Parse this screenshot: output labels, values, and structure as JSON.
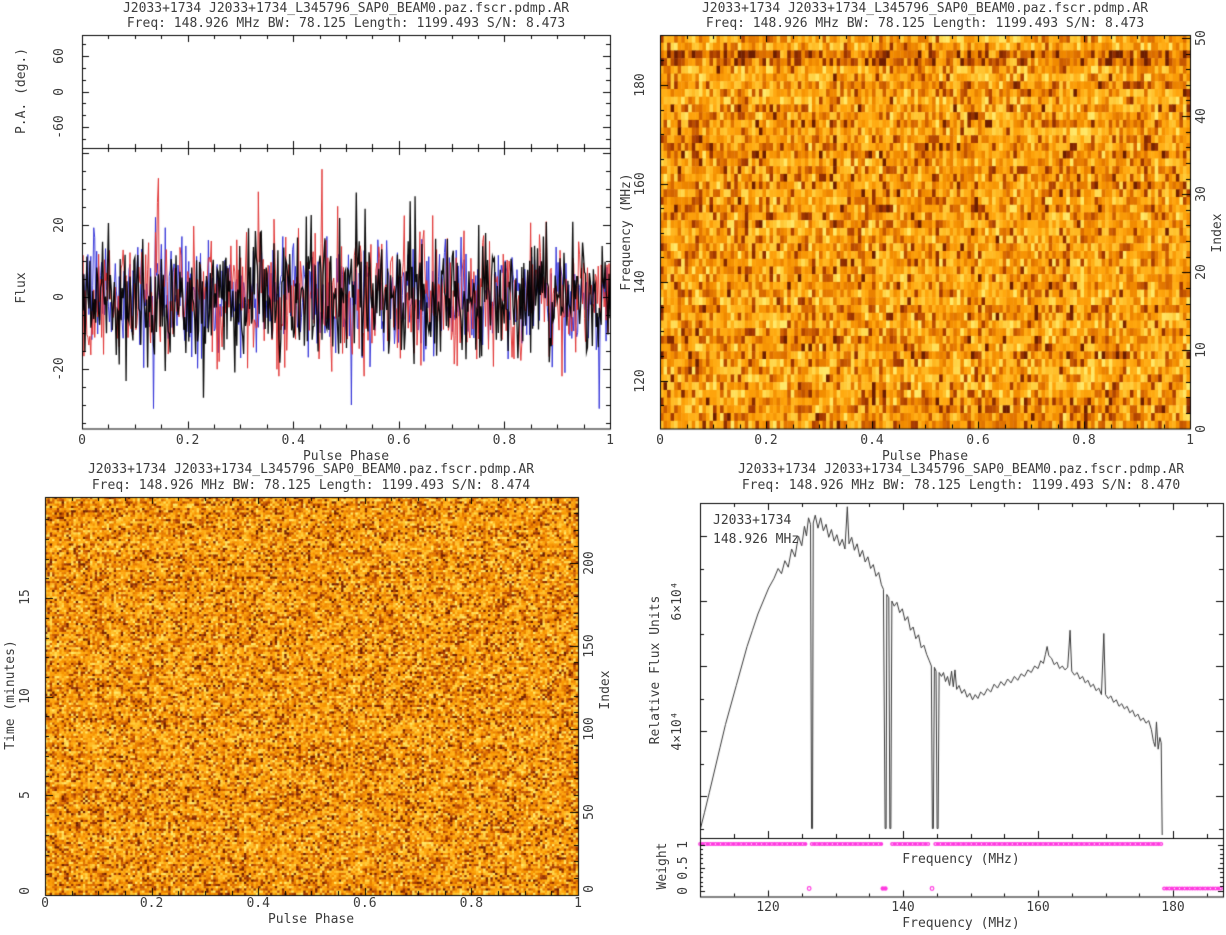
{
  "colors": {
    "background": "#ffffff",
    "axis": "#000000",
    "text": "#3c3c3c",
    "trace_black": "#000000",
    "trace_red": "#e03434",
    "trace_blue": "#3434d8",
    "magenta": "#ff3be0",
    "curve": "#383838",
    "heat_palette": [
      "#6E1E00",
      "#A63A00",
      "#D96A00",
      "#F28C00",
      "#FFA60D",
      "#FFBE28",
      "#FFD447",
      "#FFE869"
    ]
  },
  "panels": {
    "top_left": {
      "title": "J2033+1734 J2033+1734_L345796_SAP0_BEAM0.paz.fscr.pdmp.AR",
      "subtitle": "Freq: 148.926 MHz BW: 78.125 Length: 1199.493 S/N: 8.473",
      "pa_ylabel": "P.A. (deg.)",
      "pa_yticks": [
        "60",
        "0",
        "-60"
      ],
      "flux_ylabel": "Flux",
      "flux_yticks": [
        "20",
        "0",
        "-20"
      ],
      "xlabel": "Pulse Phase",
      "xticks": [
        "0",
        "0.2",
        "0.4",
        "0.6",
        "0.8",
        "1"
      ]
    },
    "top_right": {
      "title": "J2033+1734 J2033+1734_L345796_SAP0_BEAM0.paz.fscr.pdmp.AR",
      "subtitle": "Freq: 148.926 MHz BW: 78.125 Length: 1199.493 S/N: 8.473",
      "ylabel_left": "Frequency (MHz)",
      "yticks_left": [
        "180",
        "160",
        "140",
        "120"
      ],
      "ylabel_right": "Index",
      "yticks_right": [
        "50",
        "40",
        "30",
        "20",
        "10",
        "0"
      ],
      "xlabel": "Pulse Phase",
      "xticks": [
        "0",
        "0.2",
        "0.4",
        "0.6",
        "0.8",
        "1"
      ]
    },
    "bottom_left": {
      "title": "J2033+1734 J2033+1734_L345796_SAP0_BEAM0.paz.fscr.pdmp.AR",
      "subtitle": "Freq: 148.926 MHz BW: 78.125 Length: 1199.493 S/N: 8.474",
      "ylabel_left": "Time (minutes)",
      "yticks_left": [
        "15",
        "10",
        "5",
        "0"
      ],
      "ylabel_right": "Index",
      "yticks_right": [
        "200",
        "150",
        "100",
        "50",
        "0"
      ],
      "xlabel": "Pulse Phase",
      "xticks": [
        "0",
        "0.2",
        "0.4",
        "0.6",
        "0.8",
        "1"
      ]
    },
    "bottom_right": {
      "title": "J2033+1734 J2033+1734_L345796_SAP0_BEAM0.paz.fscr.pdmp.AR",
      "subtitle": "Freq: 148.926 MHz BW: 78.125 Length: 1199.493 S/N: 8.470",
      "ylabel": "Relative Flux Units",
      "yticks": [
        "6×10⁴",
        "4×10⁴"
      ],
      "annotation_line1": "J2033+1734",
      "annotation_line2": "148.926 MHz",
      "weight_ylabel": "Weight",
      "weight_yticks": [
        "1",
        "0.5",
        "0"
      ],
      "xlabel_inner": "Frequency (MHz)",
      "xlabel": "Frequency (MHz)",
      "xticks": [
        "120",
        "140",
        "160",
        "180"
      ]
    }
  },
  "chart_data": [
    {
      "id": "pa-vs-phase",
      "type": "scatter",
      "panel": "top_left",
      "ylabel": "P.A. (deg.)",
      "ylim": [
        -95,
        95
      ],
      "yticks": [
        60,
        0,
        -60
      ],
      "xlim": [
        0,
        1
      ],
      "points": [],
      "note": "position-angle panel is empty (no significant polarization detected)"
    },
    {
      "id": "profile-flux-vs-phase",
      "type": "line",
      "panel": "top_left",
      "xlabel": "Pulse Phase",
      "ylabel": "Flux",
      "xlim": [
        0,
        1
      ],
      "ylim": [
        -36.5,
        41.5
      ],
      "yticks": [
        20,
        0,
        -20
      ],
      "series": [
        {
          "name": "total-intensity",
          "color": "black",
          "style": "gaussian-noise",
          "mean": 0,
          "std": 8.8,
          "extremes": [
            [
              0.52,
              29
            ],
            [
              0.63,
              28
            ],
            [
              0.23,
              -28
            ]
          ]
        },
        {
          "name": "red-pol-trace",
          "color": "red",
          "style": "gaussian-noise",
          "mean": 0,
          "std": 8.8,
          "extremes": [
            [
              0.455,
              35.5
            ],
            [
              0.145,
              33
            ]
          ]
        },
        {
          "name": "blue-pol-trace",
          "color": "blue",
          "style": "gaussian-noise",
          "mean": 0,
          "std": 8.2,
          "extremes": [
            [
              0.135,
              -31
            ],
            [
              0.51,
              -30
            ]
          ]
        }
      ],
      "note": "noise-dominated profile, no visible pulse"
    },
    {
      "id": "phase-vs-frequency",
      "type": "heatmap",
      "panel": "top_right",
      "xlabel": "Pulse Phase",
      "ylabel": "Frequency (MHz)",
      "ylabel_right": "Index",
      "xlim": [
        0,
        1
      ],
      "ylim": [
        110,
        190
      ],
      "index_lim": [
        0,
        51
      ],
      "style": "random orange-yellow noise, 51 subband rows with horizontal banding; darker band near 184 MHz"
    },
    {
      "id": "phase-vs-time",
      "type": "heatmap",
      "panel": "bottom_left",
      "xlabel": "Pulse Phase",
      "ylabel": "Time (minutes)",
      "ylabel_right": "Index",
      "xlim": [
        0,
        1
      ],
      "ylim": [
        0,
        20
      ],
      "index_lim": [
        0,
        240
      ],
      "style": "fine-grained random orange-yellow noise with dark speckles"
    },
    {
      "id": "bandpass",
      "type": "line",
      "panel": "bottom_right",
      "xlabel": "Frequency (MHz)",
      "ylabel": "Relative Flux Units",
      "xlim": [
        109.9,
        187.5
      ],
      "ylim_1e4": [
        2.35,
        7.51
      ],
      "yticks_1e4": [
        4,
        6
      ],
      "points_mhz_flux1e4": [
        [
          110.0,
          2.5
        ],
        [
          110.6,
          2.75
        ],
        [
          111.3,
          3.05
        ],
        [
          112.1,
          3.4
        ],
        [
          112.9,
          3.75
        ],
        [
          113.7,
          4.1
        ],
        [
          114.5,
          4.4
        ],
        [
          115.3,
          4.7
        ],
        [
          116.1,
          5.0
        ],
        [
          116.9,
          5.3
        ],
        [
          117.7,
          5.55
        ],
        [
          118.5,
          5.8
        ],
        [
          119.3,
          6.0
        ],
        [
          120.1,
          6.2
        ],
        [
          120.9,
          6.35
        ],
        [
          121.5,
          6.5
        ],
        [
          122.0,
          6.42
        ],
        [
          122.5,
          6.62
        ],
        [
          123.0,
          6.52
        ],
        [
          123.5,
          6.8
        ],
        [
          124.0,
          6.68
        ],
        [
          124.5,
          7.0
        ],
        [
          125.0,
          6.85
        ],
        [
          125.4,
          7.15
        ],
        [
          125.7,
          7.0
        ],
        [
          126.0,
          7.28
        ],
        [
          126.3,
          7.18
        ],
        [
          126.45,
          2.5
        ],
        [
          126.6,
          2.5
        ],
        [
          126.7,
          7.2
        ],
        [
          127.0,
          7.32
        ],
        [
          127.4,
          7.12
        ],
        [
          127.8,
          7.28
        ],
        [
          128.2,
          7.08
        ],
        [
          128.6,
          7.18
        ],
        [
          129.0,
          6.98
        ],
        [
          129.4,
          7.1
        ],
        [
          129.8,
          6.92
        ],
        [
          130.2,
          7.02
        ],
        [
          130.6,
          6.85
        ],
        [
          131.0,
          6.95
        ],
        [
          131.4,
          6.8
        ],
        [
          131.75,
          7.45
        ],
        [
          132.0,
          6.88
        ],
        [
          132.4,
          6.98
        ],
        [
          132.8,
          6.78
        ],
        [
          133.2,
          6.88
        ],
        [
          133.6,
          6.68
        ],
        [
          134.0,
          6.78
        ],
        [
          134.4,
          6.6
        ],
        [
          134.8,
          6.68
        ],
        [
          135.2,
          6.5
        ],
        [
          135.6,
          6.56
        ],
        [
          136.0,
          6.38
        ],
        [
          136.4,
          6.44
        ],
        [
          136.8,
          6.25
        ],
        [
          137.1,
          6.18
        ],
        [
          137.35,
          2.5
        ],
        [
          137.5,
          2.5
        ],
        [
          137.6,
          6.1
        ],
        [
          137.9,
          6.05
        ],
        [
          138.05,
          2.5
        ],
        [
          138.2,
          2.5
        ],
        [
          138.35,
          6.0
        ],
        [
          138.7,
          5.92
        ],
        [
          139.1,
          5.98
        ],
        [
          139.5,
          5.82
        ],
        [
          139.9,
          5.88
        ],
        [
          140.3,
          5.7
        ],
        [
          140.7,
          5.76
        ],
        [
          141.1,
          5.55
        ],
        [
          141.5,
          5.6
        ],
        [
          141.9,
          5.42
        ],
        [
          142.3,
          5.48
        ],
        [
          142.7,
          5.28
        ],
        [
          143.1,
          5.32
        ],
        [
          143.5,
          5.18
        ],
        [
          143.9,
          5.08
        ],
        [
          144.2,
          5.0
        ],
        [
          144.35,
          2.5
        ],
        [
          144.5,
          2.5
        ],
        [
          144.65,
          4.98
        ],
        [
          144.9,
          4.92
        ],
        [
          145.05,
          2.5
        ],
        [
          145.2,
          2.5
        ],
        [
          145.35,
          4.9
        ],
        [
          145.7,
          4.84
        ],
        [
          146.0,
          4.9
        ],
        [
          146.3,
          4.76
        ],
        [
          146.6,
          4.84
        ],
        [
          146.9,
          4.7
        ],
        [
          147.2,
          4.92
        ],
        [
          147.45,
          4.68
        ],
        [
          147.7,
          4.94
        ],
        [
          147.95,
          4.64
        ],
        [
          148.3,
          4.7
        ],
        [
          148.7,
          4.58
        ],
        [
          149.1,
          4.64
        ],
        [
          149.5,
          4.52
        ],
        [
          149.9,
          4.58
        ],
        [
          150.3,
          4.48
        ],
        [
          150.7,
          4.56
        ],
        [
          151.1,
          4.5
        ],
        [
          151.5,
          4.6
        ],
        [
          152.0,
          4.55
        ],
        [
          152.5,
          4.65
        ],
        [
          153.0,
          4.6
        ],
        [
          153.5,
          4.72
        ],
        [
          154.0,
          4.66
        ],
        [
          154.5,
          4.76
        ],
        [
          155.0,
          4.7
        ],
        [
          155.5,
          4.8
        ],
        [
          156.0,
          4.74
        ],
        [
          156.5,
          4.84
        ],
        [
          157.0,
          4.78
        ],
        [
          157.5,
          4.88
        ],
        [
          158.0,
          4.84
        ],
        [
          158.5,
          4.94
        ],
        [
          159.0,
          4.9
        ],
        [
          159.5,
          5.0
        ],
        [
          160.0,
          4.96
        ],
        [
          160.4,
          5.08
        ],
        [
          160.8,
          5.04
        ],
        [
          161.1,
          5.18
        ],
        [
          161.35,
          5.3
        ],
        [
          161.6,
          5.16
        ],
        [
          162.0,
          5.12
        ],
        [
          162.4,
          5.02
        ],
        [
          162.8,
          5.06
        ],
        [
          163.2,
          4.96
        ],
        [
          163.6,
          5.0
        ],
        [
          164.0,
          4.94
        ],
        [
          164.4,
          4.98
        ],
        [
          164.75,
          5.55
        ],
        [
          165.0,
          4.92
        ],
        [
          165.4,
          4.86
        ],
        [
          165.8,
          4.9
        ],
        [
          166.2,
          4.8
        ],
        [
          166.6,
          4.84
        ],
        [
          167.0,
          4.74
        ],
        [
          167.4,
          4.78
        ],
        [
          167.8,
          4.68
        ],
        [
          168.2,
          4.72
        ],
        [
          168.6,
          4.62
        ],
        [
          169.0,
          4.66
        ],
        [
          169.4,
          4.56
        ],
        [
          169.75,
          5.5
        ],
        [
          170.0,
          4.56
        ],
        [
          170.4,
          4.5
        ],
        [
          170.8,
          4.54
        ],
        [
          171.2,
          4.44
        ],
        [
          171.6,
          4.48
        ],
        [
          172.0,
          4.38
        ],
        [
          172.4,
          4.42
        ],
        [
          172.8,
          4.34
        ],
        [
          173.2,
          4.38
        ],
        [
          173.6,
          4.28
        ],
        [
          174.0,
          4.32
        ],
        [
          174.4,
          4.22
        ],
        [
          174.8,
          4.26
        ],
        [
          175.2,
          4.16
        ],
        [
          175.6,
          4.2
        ],
        [
          176.0,
          4.12
        ],
        [
          176.4,
          4.16
        ],
        [
          176.8,
          4.02
        ],
        [
          177.1,
          3.84
        ],
        [
          177.35,
          3.76
        ],
        [
          177.55,
          4.14
        ],
        [
          177.8,
          3.72
        ],
        [
          178.05,
          3.9
        ],
        [
          178.25,
          3.82
        ],
        [
          178.4,
          2.4
        ]
      ],
      "annotation": [
        "J2033+1734",
        "148.926 MHz"
      ]
    },
    {
      "id": "channel-weights",
      "type": "scatter",
      "panel": "bottom_right",
      "xlabel": "Frequency (MHz)",
      "ylabel": "Weight",
      "ylim": [
        0,
        1
      ],
      "xticks": [
        120,
        140,
        160,
        180
      ],
      "weight_one_segments_mhz": [
        [
          109.95,
          125.9
        ],
        [
          126.5,
          137.1
        ],
        [
          138.4,
          143.75
        ],
        [
          144.8,
          178.5
        ]
      ],
      "weight_zero_points_hollow_mhz": [
        126.1,
        144.3
      ],
      "weight_zero_points_filled_mhz": [
        137.0,
        137.4
      ],
      "weight_zero_segments_mhz": [
        [
          178.7,
          187.35
        ]
      ]
    }
  ]
}
